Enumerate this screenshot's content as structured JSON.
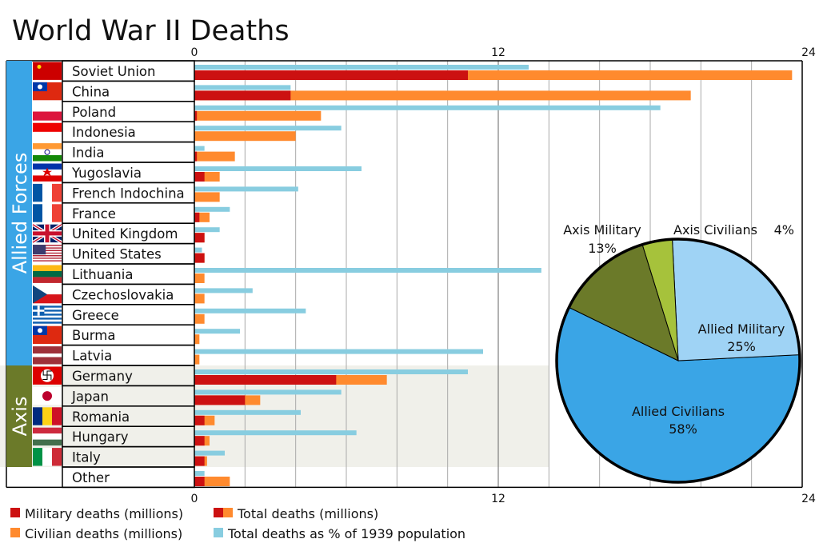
{
  "title": "World War II Deaths",
  "colors": {
    "military": "#cc1111",
    "civilian": "#ff8a2e",
    "percent": "#88cde0",
    "allied_band": "#3aa5e6",
    "axis_band": "#6b7a29",
    "axis_shade": "#f0f0ea",
    "pie_allied_civilians": "#3aa5e6",
    "pie_allied_military": "#9fd3f5",
    "pie_axis_military": "#6b7a29",
    "pie_axis_civilians": "#a6c23b"
  },
  "chart_data": [
    {
      "type": "bar",
      "title": "World War II Deaths",
      "groups": [
        {
          "name": "Allied Forces",
          "countries": [
            "Soviet Union",
            "China",
            "Poland",
            "Indonesia",
            "India",
            "Yugoslavia",
            "French Indochina",
            "France",
            "United Kingdom",
            "United States",
            "Lithuania",
            "Czechoslovakia",
            "Greece",
            "Burma",
            "Latvia"
          ]
        },
        {
          "name": "Axis",
          "countries": [
            "Germany",
            "Japan",
            "Romania",
            "Hungary",
            "Italy"
          ]
        },
        {
          "name": "",
          "countries": [
            "Other"
          ]
        }
      ],
      "categories": [
        "Soviet Union",
        "China",
        "Poland",
        "Indonesia",
        "India",
        "Yugoslavia",
        "French Indochina",
        "France",
        "United Kingdom",
        "United States",
        "Lithuania",
        "Czechoslovakia",
        "Greece",
        "Burma",
        "Latvia",
        "Germany",
        "Japan",
        "Romania",
        "Hungary",
        "Italy",
        "Other"
      ],
      "flags": [
        "soviet-union",
        "china",
        "poland",
        "indonesia",
        "india",
        "yugoslavia",
        "france",
        "france",
        "united-kingdom",
        "united-states",
        "lithuania",
        "czechoslovakia",
        "greece",
        "burma",
        "latvia",
        "germany",
        "japan",
        "romania",
        "hungary",
        "italy",
        ""
      ],
      "series": [
        {
          "name": "Military deaths (millions)",
          "values": [
            10.8,
            3.8,
            0.1,
            0,
            0.1,
            0.4,
            0,
            0.2,
            0.4,
            0.4,
            0,
            0,
            0,
            0,
            0,
            5.6,
            2.0,
            0.4,
            0.4,
            0.4,
            0.4
          ]
        },
        {
          "name": "Total deaths (millions)",
          "values": [
            23.6,
            19.6,
            5.0,
            4.0,
            1.6,
            1.0,
            1.0,
            0.6,
            0.4,
            0.4,
            0.4,
            0.4,
            0.4,
            0.2,
            0.2,
            7.6,
            2.6,
            0.8,
            0.6,
            0.5,
            1.4
          ]
        },
        {
          "name": "Total deaths as % of 1939 population",
          "values": [
            13.2,
            3.8,
            18.4,
            5.8,
            0.4,
            6.6,
            4.1,
            1.4,
            1.0,
            0.3,
            13.7,
            2.3,
            4.4,
            1.8,
            11.4,
            10.8,
            5.8,
            4.2,
            6.4,
            1.2,
            0.4
          ]
        }
      ],
      "xlim": [
        0,
        24
      ],
      "top_ticks": [
        "0",
        "12",
        "24"
      ],
      "bottom_ticks": [
        "0",
        "12",
        "24"
      ],
      "grid": true
    },
    {
      "type": "pie",
      "slices": [
        {
          "label": "Allied Civilians",
          "pct_label": "58%",
          "value": 58
        },
        {
          "label": "Allied Military",
          "pct_label": "25%",
          "value": 25
        },
        {
          "label": "Axis Civilians",
          "pct_label": "4%",
          "value": 4
        },
        {
          "label": "Axis Military",
          "pct_label": "13%",
          "value": 13
        }
      ]
    }
  ],
  "legend": [
    {
      "label": "Military deaths (millions)",
      "swatch": "military"
    },
    {
      "label": "Total deaths (millions)",
      "swatch": "total"
    },
    {
      "label": "Civilian deaths (millions)",
      "swatch": "civilian"
    },
    {
      "label": "Total deaths as % of 1939 population",
      "swatch": "percent"
    }
  ]
}
